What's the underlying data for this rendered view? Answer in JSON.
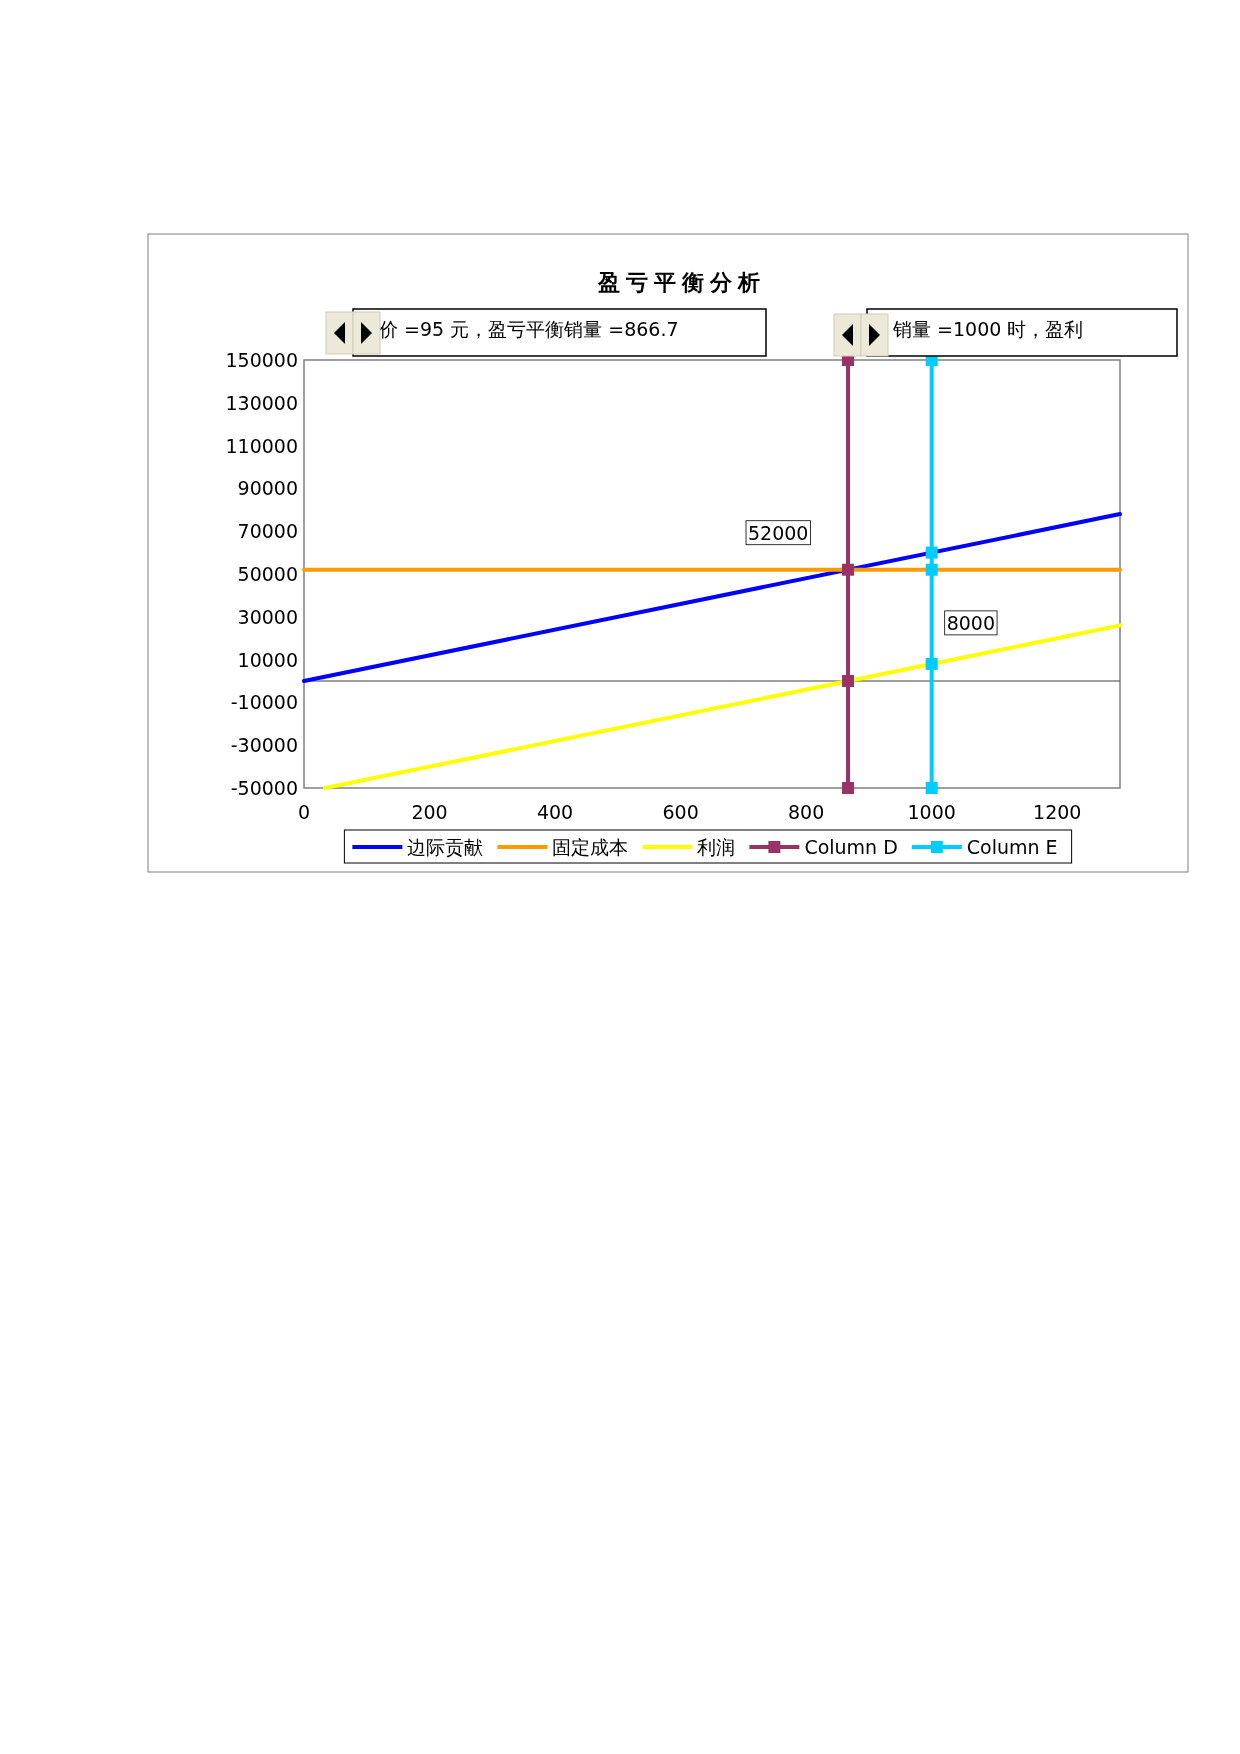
{
  "chart_data": {
    "type": "line",
    "title": "盈亏平衡分析",
    "xlim": [
      0,
      1300
    ],
    "xticks": [
      0,
      200,
      400,
      600,
      800,
      1000,
      1200
    ],
    "ylim": [
      -50000,
      150000
    ],
    "yticks": [
      -50000,
      -30000,
      -10000,
      10000,
      30000,
      50000,
      70000,
      90000,
      110000,
      130000,
      150000
    ],
    "grid": false,
    "legend": "bottom",
    "series": [
      {
        "name": "边际贡献",
        "color": "#0000ff",
        "marker": "none",
        "x": [
          0,
          1300
        ],
        "values": [
          0,
          78000
        ]
      },
      {
        "name": "固定成本",
        "color": "#ff9900",
        "marker": "none",
        "x": [
          0,
          1300
        ],
        "values": [
          52000,
          52000
        ]
      },
      {
        "name": "利润",
        "color": "#ffff00",
        "marker": "none",
        "x": [
          33.3,
          1300
        ],
        "values": [
          -50000,
          26000
        ]
      },
      {
        "name": "Column D",
        "color": "#993366",
        "marker": "square",
        "x": [
          866.7,
          866.7,
          866.7,
          866.7
        ],
        "values": [
          -50000,
          0,
          52000,
          150000
        ]
      },
      {
        "name": "Column E",
        "color": "#00ccff",
        "marker": "square",
        "x": [
          1000,
          1000,
          1000,
          1000,
          1000
        ],
        "values": [
          -50000,
          8000,
          52000,
          60000,
          150000
        ]
      }
    ],
    "annotations": [
      "价 =95 元，盈亏平衡销量 =866.7",
      "销量 =1000 时，盈利",
      {
        "text": "52000",
        "x": 866.7,
        "y": 52000
      },
      {
        "text": "8000",
        "x": 1000,
        "y": 8000
      }
    ]
  }
}
